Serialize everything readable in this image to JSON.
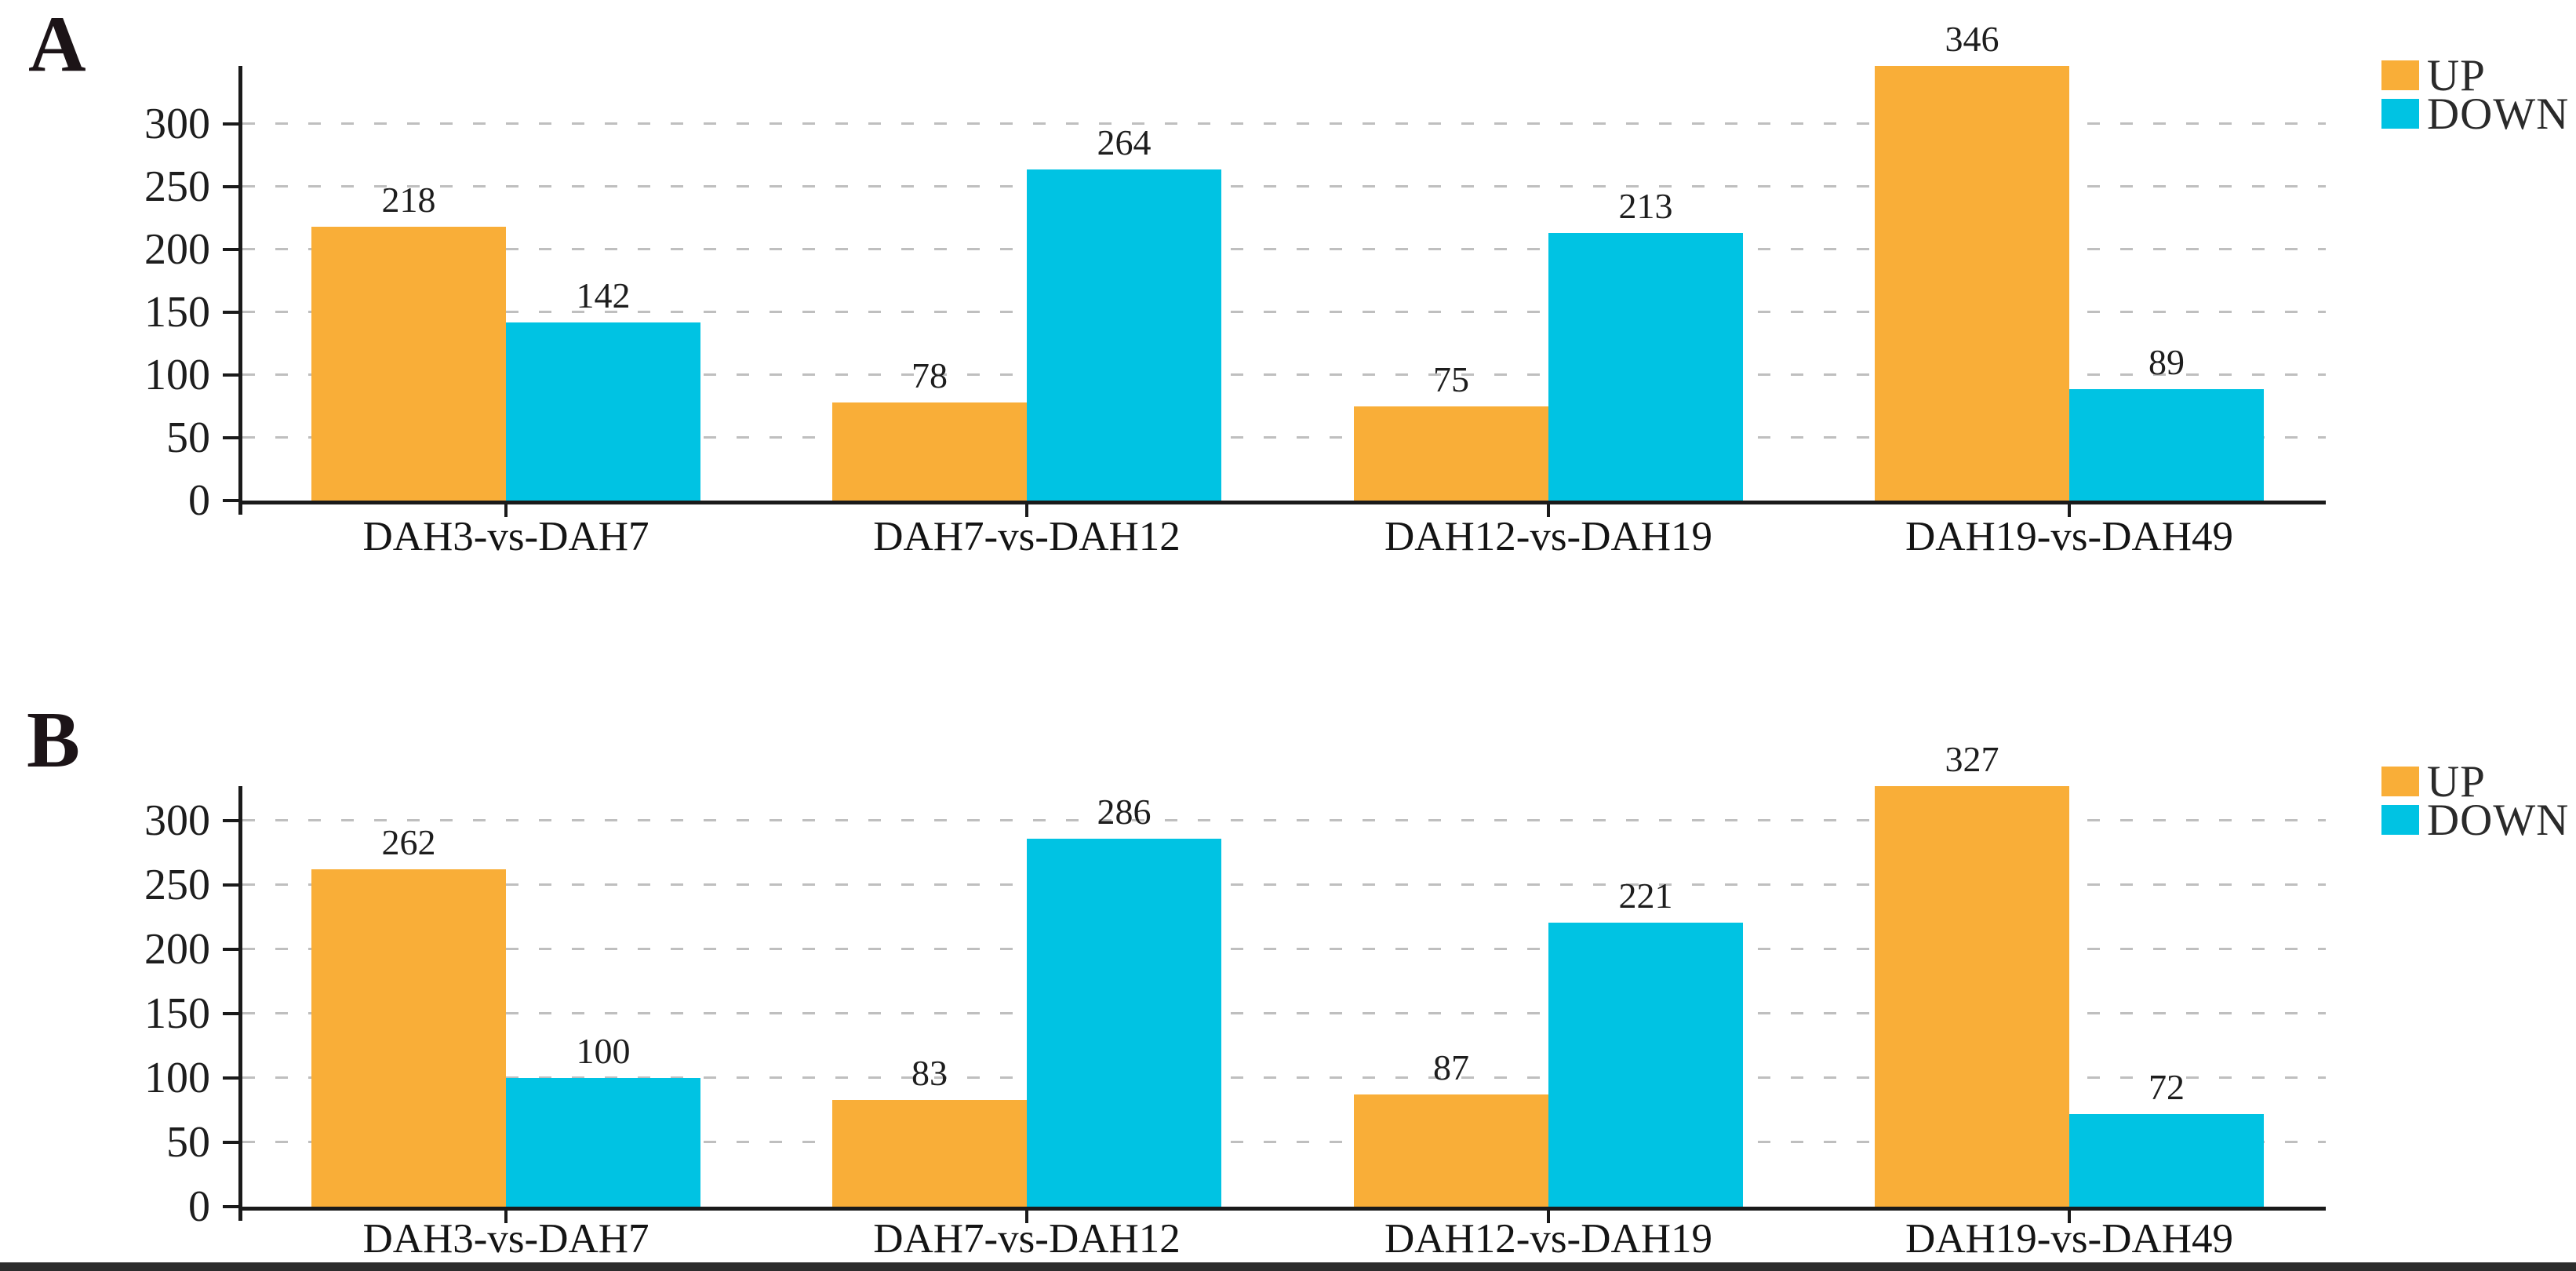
{
  "colors": {
    "up": "#F9AE38",
    "down": "#00C3E3",
    "axis": "#1a1a1a",
    "gridline": "#bfbfbf",
    "text": "#1d1d1d"
  },
  "chart_data": [
    {
      "type": "bar",
      "panel_label": "A",
      "title": "",
      "xlabel": "",
      "ylabel": "",
      "categories": [
        "DAH3-vs-DAH7",
        "DAH7-vs-DAH12",
        "DAH12-vs-DAH19",
        "DAH19-vs-DAH49"
      ],
      "series": [
        {
          "name": "UP",
          "color": "#F9AE38",
          "values": [
            218,
            78,
            75,
            346
          ]
        },
        {
          "name": "DOWN",
          "color": "#00C3E3",
          "values": [
            142,
            264,
            213,
            89
          ]
        }
      ],
      "y_ticks": [
        0,
        50,
        100,
        150,
        200,
        250,
        300
      ],
      "ylim": [
        0,
        346
      ],
      "grid": "dashed-horizontal",
      "legend_position": "top-right",
      "legend": [
        {
          "label": "UP",
          "color": "#F9AE38"
        },
        {
          "label": "DOWN",
          "color": "#00C3E3"
        }
      ]
    },
    {
      "type": "bar",
      "panel_label": "B",
      "title": "",
      "xlabel": "",
      "ylabel": "",
      "categories": [
        "DAH3-vs-DAH7",
        "DAH7-vs-DAH12",
        "DAH12-vs-DAH19",
        "DAH19-vs-DAH49"
      ],
      "series": [
        {
          "name": "UP",
          "color": "#F9AE38",
          "values": [
            262,
            83,
            87,
            327
          ]
        },
        {
          "name": "DOWN",
          "color": "#00C3E3",
          "values": [
            100,
            286,
            221,
            72
          ]
        }
      ],
      "y_ticks": [
        0,
        50,
        100,
        150,
        200,
        250,
        300
      ],
      "ylim": [
        0,
        327
      ],
      "grid": "dashed-horizontal",
      "legend_position": "top-right",
      "legend": [
        {
          "label": "UP",
          "color": "#F9AE38"
        },
        {
          "label": "DOWN",
          "color": "#00C3E3"
        }
      ]
    }
  ]
}
